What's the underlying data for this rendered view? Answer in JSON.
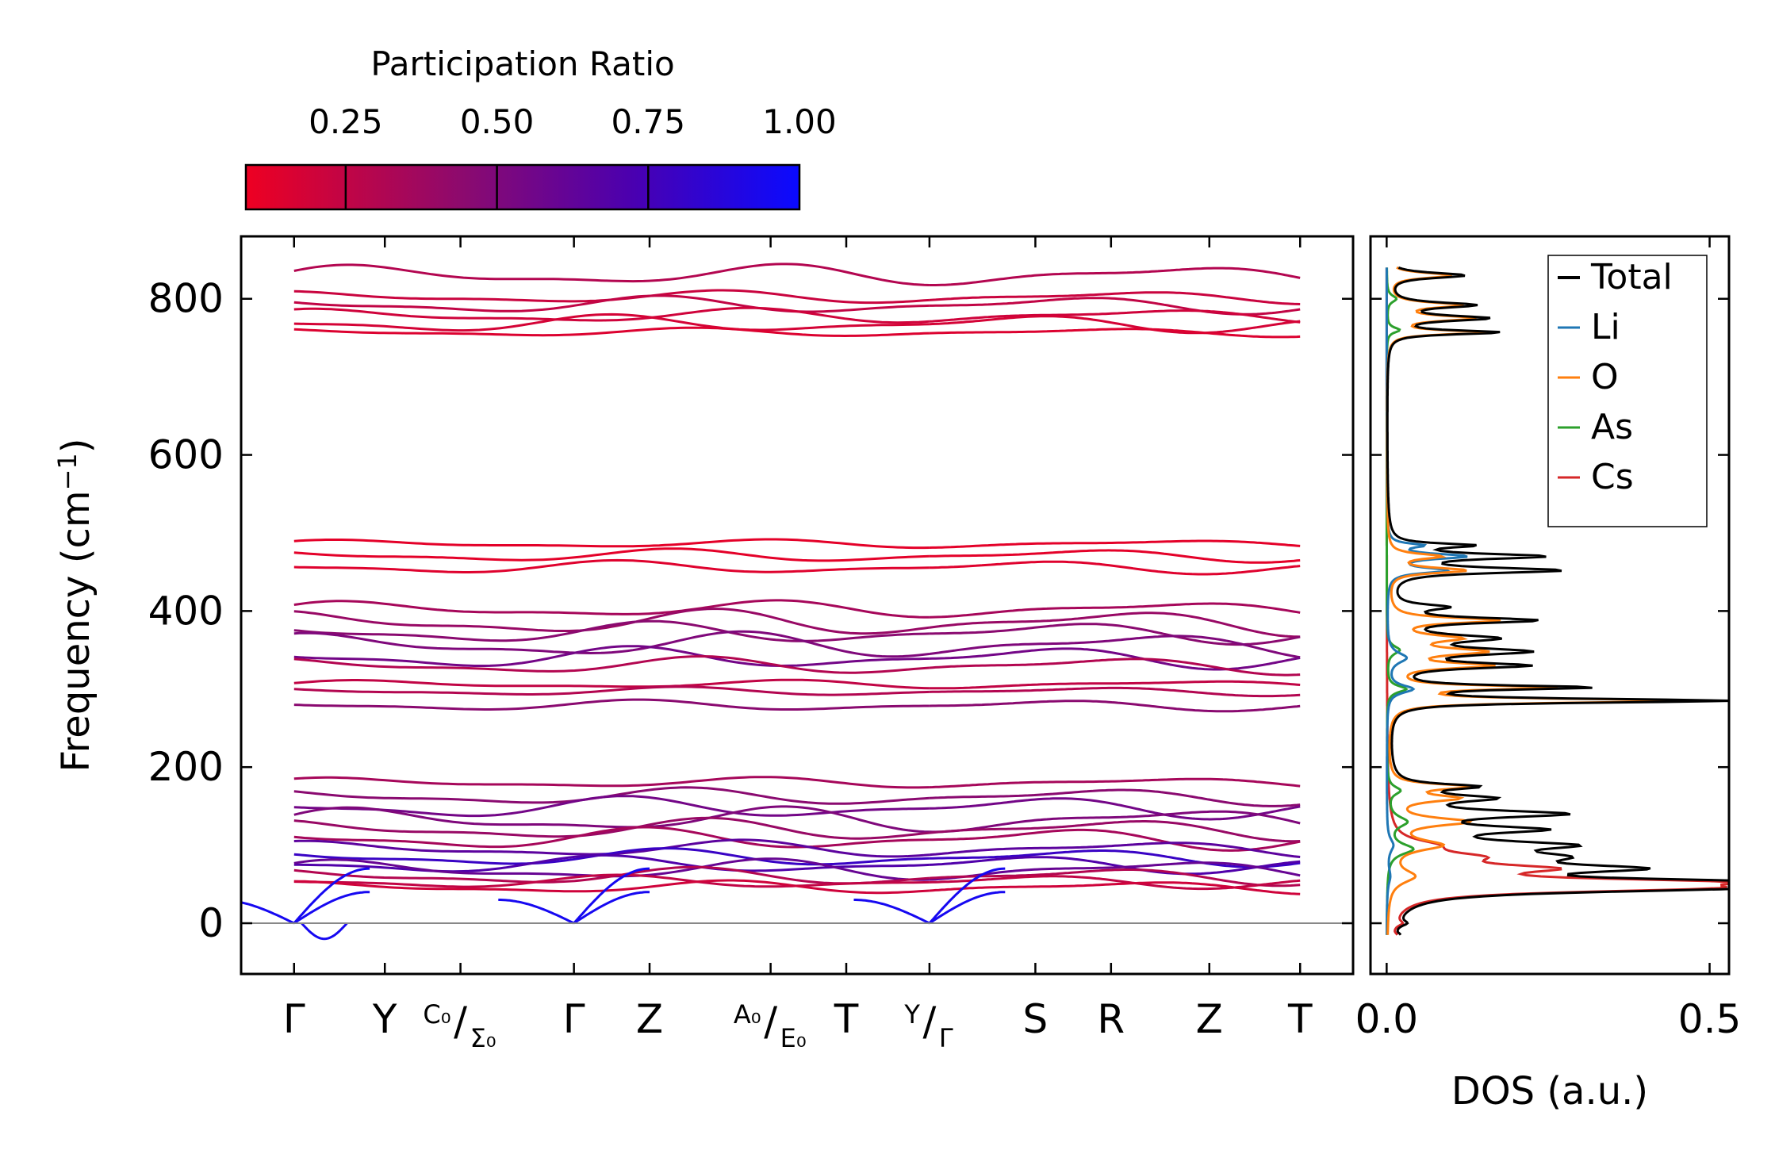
{
  "chart_data": [
    {
      "type": "colorbar",
      "title": "Participation Ratio",
      "tick_labels": [
        "0.25",
        "0.50",
        "0.75",
        "1.00"
      ],
      "ticks": [
        0.25,
        0.5,
        0.75,
        1.0
      ],
      "range": [
        0.085,
        1.0
      ],
      "colors": [
        "#ee0022",
        "#8a0a70",
        "#4a00b0",
        "#0a0aff"
      ]
    },
    {
      "type": "line",
      "name": "phonon-band-structure",
      "ylabel": "Frequency (cm",
      "ylabel_sup": "−1",
      "ylabel_end": ")",
      "ylim": [
        -65,
        880
      ],
      "yticks": [
        0,
        200,
        400,
        600,
        800
      ],
      "ytick_labels": [
        "0",
        "200",
        "400",
        "600",
        "800"
      ],
      "xlim": [
        -0.35,
        7.0
      ],
      "path_segments": [
        [
          0,
          4.2
        ],
        [
          4.2,
          6.65
        ]
      ],
      "kpoints": [
        {
          "label": "Γ",
          "x": 0
        },
        {
          "label": "Y",
          "x": 0.6
        },
        {
          "label": "C₀",
          "label2": "Σ₀",
          "x": 1.1
        },
        {
          "label": "Γ",
          "x": 1.85
        },
        {
          "label": "Z",
          "x": 2.35
        },
        {
          "label": "A₀",
          "label2": "E₀",
          "x": 3.15
        },
        {
          "label": "T",
          "x": 3.65
        },
        {
          "label": "Y",
          "label2": "Γ",
          "x": 4.2
        },
        {
          "label": "S",
          "x": 4.9
        },
        {
          "label": "R",
          "x": 5.4
        },
        {
          "label": "Z",
          "x": 6.05
        },
        {
          "label": "T",
          "x": 6.65
        }
      ],
      "bands": [
        {
          "f": 830,
          "amp": 10,
          "ph": 0.3,
          "pr": 0.3
        },
        {
          "f": 802,
          "amp": 6,
          "ph": 1.2,
          "pr": 0.22
        },
        {
          "f": 792,
          "amp": 8,
          "ph": 2.1,
          "pr": 0.25
        },
        {
          "f": 778,
          "amp": 7,
          "ph": 0.8,
          "pr": 0.2
        },
        {
          "f": 768,
          "amp": 8,
          "ph": 2.8,
          "pr": 0.18
        },
        {
          "f": 757,
          "amp": 4,
          "ph": 1.6,
          "pr": 0.15
        },
        {
          "f": 486,
          "amp": 4,
          "ph": 0.5,
          "pr": 0.12
        },
        {
          "f": 471,
          "amp": 6,
          "ph": 1.9,
          "pr": 0.12
        },
        {
          "f": 456,
          "amp": 6,
          "ph": 2.7,
          "pr": 0.14
        },
        {
          "f": 402,
          "amp": 8,
          "ph": 0.4,
          "pr": 0.35
        },
        {
          "f": 385,
          "amp": 12,
          "ph": 1.3,
          "pr": 0.4
        },
        {
          "f": 372,
          "amp": 10,
          "ph": 2.2,
          "pr": 0.45
        },
        {
          "f": 356,
          "amp": 12,
          "ph": 0.9,
          "pr": 0.5
        },
        {
          "f": 340,
          "amp": 10,
          "ph": 2.5,
          "pr": 0.55
        },
        {
          "f": 330,
          "amp": 8,
          "ph": 1.5,
          "pr": 0.3
        },
        {
          "f": 306,
          "amp": 4,
          "ph": 0.2,
          "pr": 0.25
        },
        {
          "f": 297,
          "amp": 4,
          "ph": 1.8,
          "pr": 0.3
        },
        {
          "f": 279,
          "amp": 5,
          "ph": 2.4,
          "pr": 0.45
        },
        {
          "f": 180,
          "amp": 5,
          "ph": 0.6,
          "pr": 0.35
        },
        {
          "f": 162,
          "amp": 8,
          "ph": 1.7,
          "pr": 0.45
        },
        {
          "f": 148,
          "amp": 10,
          "ph": 2.6,
          "pr": 0.55
        },
        {
          "f": 132,
          "amp": 12,
          "ph": 0.3,
          "pr": 0.5
        },
        {
          "f": 120,
          "amp": 10,
          "ph": 1.4,
          "pr": 0.4
        },
        {
          "f": 108,
          "amp": 10,
          "ph": 2.3,
          "pr": 0.35
        },
        {
          "f": 95,
          "amp": 8,
          "ph": 0.9,
          "pr": 0.65
        },
        {
          "f": 84,
          "amp": 8,
          "ph": 2.0,
          "pr": 0.8
        },
        {
          "f": 75,
          "amp": 8,
          "ph": 2.9,
          "pr": 0.7
        },
        {
          "f": 68,
          "amp": 10,
          "ph": 0.5,
          "pr": 0.6
        },
        {
          "f": 60,
          "amp": 8,
          "ph": 1.6,
          "pr": 0.3
        },
        {
          "f": 53,
          "amp": 6,
          "ph": 2.7,
          "pr": 0.25
        },
        {
          "f": 46,
          "amp": 6,
          "ph": 1.1,
          "pr": 0.2
        }
      ],
      "acoustic_pr": 0.95,
      "zero_line": true
    },
    {
      "type": "line",
      "name": "dos",
      "xlabel": "DOS (a.u.)",
      "xlim": [
        -0.025,
        0.53
      ],
      "xticks": [
        0.0,
        0.5
      ],
      "xtick_labels": [
        "0.0",
        "0.5"
      ],
      "ylim": [
        -65,
        880
      ],
      "legend_position": "top-right",
      "series": [
        {
          "name": "Total",
          "color": "#000000",
          "peaks": [
            [
              -15,
              0.01,
              3
            ],
            [
              0,
              0.015,
              4
            ],
            [
              45,
              0.43,
              6
            ],
            [
              53,
              0.4,
              5
            ],
            [
              70,
              0.3,
              6
            ],
            [
              85,
              0.19,
              8
            ],
            [
              100,
              0.22,
              6
            ],
            [
              120,
              0.2,
              5
            ],
            [
              140,
              0.25,
              5
            ],
            [
              160,
              0.14,
              5
            ],
            [
              175,
              0.12,
              4
            ],
            [
              285,
              0.52,
              3
            ],
            [
              302,
              0.3,
              3
            ],
            [
              330,
              0.2,
              4
            ],
            [
              348,
              0.2,
              5
            ],
            [
              365,
              0.15,
              5
            ],
            [
              388,
              0.22,
              4
            ],
            [
              405,
              0.08,
              4
            ],
            [
              452,
              0.26,
              4
            ],
            [
              470,
              0.23,
              4
            ],
            [
              484,
              0.12,
              3
            ],
            [
              757,
              0.17,
              3
            ],
            [
              775,
              0.15,
              4
            ],
            [
              792,
              0.13,
              4
            ],
            [
              830,
              0.12,
              4
            ]
          ]
        },
        {
          "name": "Li",
          "color": "#1f77b4",
          "peaks": [
            [
              60,
              0.005,
              12
            ],
            [
              100,
              0.01,
              10
            ],
            [
              300,
              0.04,
              6
            ],
            [
              340,
              0.03,
              8
            ],
            [
              452,
              0.09,
              4
            ],
            [
              470,
              0.12,
              4
            ],
            [
              484,
              0.05,
              3
            ]
          ]
        },
        {
          "name": "O",
          "color": "#ff7f0e",
          "peaks": [
            [
              60,
              0.04,
              10
            ],
            [
              100,
              0.08,
              8
            ],
            [
              130,
              0.12,
              6
            ],
            [
              160,
              0.1,
              5
            ],
            [
              175,
              0.12,
              4
            ],
            [
              285,
              0.47,
              3
            ],
            [
              302,
              0.25,
              3
            ],
            [
              330,
              0.15,
              4
            ],
            [
              348,
              0.14,
              5
            ],
            [
              365,
              0.1,
              5
            ],
            [
              388,
              0.17,
              4
            ],
            [
              452,
              0.12,
              4
            ],
            [
              470,
              0.08,
              4
            ],
            [
              757,
              0.15,
              3
            ],
            [
              775,
              0.13,
              4
            ],
            [
              792,
              0.11,
              4
            ],
            [
              830,
              0.1,
              4
            ]
          ]
        },
        {
          "name": "As",
          "color": "#2ca02c",
          "peaks": [
            [
              95,
              0.04,
              8
            ],
            [
              130,
              0.03,
              8
            ],
            [
              170,
              0.02,
              6
            ],
            [
              300,
              0.03,
              5
            ],
            [
              350,
              0.02,
              6
            ],
            [
              760,
              0.02,
              4
            ],
            [
              800,
              0.015,
              5
            ]
          ]
        },
        {
          "name": "Cs",
          "color": "#d62728",
          "peaks": [
            [
              -15,
              0.008,
              3
            ],
            [
              0,
              0.012,
              4
            ],
            [
              45,
              0.4,
              6
            ],
            [
              53,
              0.36,
              5
            ],
            [
              70,
              0.2,
              6
            ],
            [
              85,
              0.1,
              7
            ],
            [
              100,
              0.05,
              8
            ]
          ]
        }
      ]
    }
  ]
}
